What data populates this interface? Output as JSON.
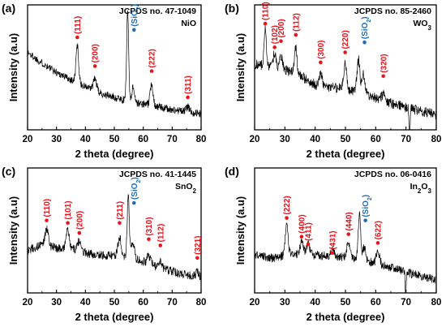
{
  "colors": {
    "trace": "#000000",
    "reference_peak": "#e8141c",
    "substrate_peak": "#1f6db5",
    "frame": "#000000"
  },
  "chart_data": [
    {
      "type": "line",
      "panel_label": "(a)",
      "reference_card": "JCPDS no. 47-1049",
      "phase": {
        "base": "NiO",
        "sub": "",
        "tail": ""
      },
      "xlabel": "2 theta (degree)",
      "ylabel": "Intensity (a.u)",
      "xlim": [
        20,
        80
      ],
      "x_ticks": [
        20,
        30,
        40,
        50,
        60,
        70,
        80
      ],
      "grid": false,
      "ylim": [
        0,
        1
      ],
      "background": [
        [
          20,
          0.62
        ],
        [
          24,
          0.55
        ],
        [
          30,
          0.46
        ],
        [
          36,
          0.39
        ],
        [
          44,
          0.3
        ],
        [
          50,
          0.26
        ],
        [
          56,
          0.22
        ],
        [
          62,
          0.2
        ],
        [
          70,
          0.16
        ],
        [
          80,
          0.13
        ]
      ],
      "noise_amplitude": 0.03,
      "trace_peaks": [
        {
          "x": 37.2,
          "height": 0.3,
          "width": 0.45
        },
        {
          "x": 43.3,
          "height": 0.1,
          "width": 0.6
        },
        {
          "x": 54.6,
          "height": 0.72,
          "width": 0.35
        },
        {
          "x": 56.5,
          "height": 0.12,
          "width": 0.5
        },
        {
          "x": 62.9,
          "height": 0.17,
          "width": 0.5
        },
        {
          "x": 75.4,
          "height": 0.04,
          "width": 0.6
        }
      ],
      "dips": [],
      "reference_peaks": [
        {
          "label": "(111)",
          "x": 37.2,
          "y": 0.74,
          "type": "phase"
        },
        {
          "label": "(200)",
          "x": 43.3,
          "y": 0.51,
          "type": "phase"
        },
        {
          "label": "(SiO2)",
          "x": 56.8,
          "y": 0.8,
          "type": "substrate"
        },
        {
          "label": "(222)",
          "x": 62.9,
          "y": 0.47,
          "type": "phase"
        },
        {
          "label": "(311)",
          "x": 75.4,
          "y": 0.26,
          "type": "phase"
        }
      ]
    },
    {
      "type": "line",
      "panel_label": "(b)",
      "reference_card": "JCPDS no. 85-2460",
      "phase": {
        "base": "WO",
        "sub": "3",
        "tail": ""
      },
      "xlabel": "2 theta (degree)",
      "ylabel": "Intensity (a.u)",
      "xlim": [
        20,
        80
      ],
      "x_ticks": [
        20,
        30,
        40,
        50,
        60,
        70,
        80
      ],
      "grid": false,
      "ylim": [
        0,
        1
      ],
      "background": [
        [
          22,
          0.52
        ],
        [
          26,
          0.5
        ],
        [
          30,
          0.48
        ],
        [
          36,
          0.42
        ],
        [
          40,
          0.36
        ],
        [
          46,
          0.34
        ],
        [
          52,
          0.32
        ],
        [
          58,
          0.27
        ],
        [
          64,
          0.22
        ],
        [
          70,
          0.18
        ],
        [
          80,
          0.12
        ]
      ],
      "noise_amplitude": 0.04,
      "trace_peaks": [
        {
          "x": 23.5,
          "height": 0.3,
          "width": 0.35
        },
        {
          "x": 26.6,
          "height": 0.12,
          "width": 0.45
        },
        {
          "x": 28.7,
          "height": 0.1,
          "width": 0.45
        },
        {
          "x": 33.6,
          "height": 0.22,
          "width": 0.4
        },
        {
          "x": 41.8,
          "height": 0.1,
          "width": 0.5
        },
        {
          "x": 49.9,
          "height": 0.22,
          "width": 0.45
        },
        {
          "x": 54.3,
          "height": 0.26,
          "width": 0.45
        },
        {
          "x": 55.9,
          "height": 0.16,
          "width": 0.5
        },
        {
          "x": 62.5,
          "height": 0.05,
          "width": 0.6
        }
      ],
      "dips": [
        {
          "x": 71.2,
          "depth": 0.25,
          "width": 0.15
        }
      ],
      "reference_peaks": [
        {
          "label": "(110)",
          "x": 23.5,
          "y": 0.85,
          "type": "phase"
        },
        {
          "label": "(102)",
          "x": 26.6,
          "y": 0.66,
          "type": "phase"
        },
        {
          "label": "(200)",
          "x": 28.7,
          "y": 0.71,
          "type": "phase"
        },
        {
          "label": "(112)",
          "x": 33.6,
          "y": 0.76,
          "type": "phase"
        },
        {
          "label": "(300)",
          "x": 41.8,
          "y": 0.54,
          "type": "phase"
        },
        {
          "label": "(220)",
          "x": 49.9,
          "y": 0.62,
          "type": "phase"
        },
        {
          "label": "(SiO2)",
          "x": 56.3,
          "y": 0.7,
          "type": "substrate"
        },
        {
          "label": "(320)",
          "x": 62.5,
          "y": 0.43,
          "type": "phase"
        }
      ]
    },
    {
      "type": "line",
      "panel_label": "(c)",
      "reference_card": "JCPDS no. 41-1445",
      "phase": {
        "base": "SnO",
        "sub": "2",
        "tail": ""
      },
      "xlabel": "2 theta (degree)",
      "ylabel": "Intensity (a.u)",
      "xlim": [
        20,
        80
      ],
      "x_ticks": [
        20,
        30,
        40,
        50,
        60,
        70,
        80
      ],
      "grid": false,
      "ylim": [
        0,
        1
      ],
      "background": [
        [
          20,
          0.34
        ],
        [
          24,
          0.38
        ],
        [
          30,
          0.36
        ],
        [
          36,
          0.35
        ],
        [
          42,
          0.31
        ],
        [
          48,
          0.3
        ],
        [
          54,
          0.29
        ],
        [
          60,
          0.25
        ],
        [
          66,
          0.2
        ],
        [
          72,
          0.16
        ],
        [
          80,
          0.12
        ]
      ],
      "noise_amplitude": 0.035,
      "trace_peaks": [
        {
          "x": 26.6,
          "height": 0.14,
          "width": 0.6
        },
        {
          "x": 33.9,
          "height": 0.15,
          "width": 0.55
        },
        {
          "x": 37.9,
          "height": 0.08,
          "width": 0.6
        },
        {
          "x": 51.8,
          "height": 0.15,
          "width": 0.55
        },
        {
          "x": 54.8,
          "height": 0.5,
          "width": 0.35
        },
        {
          "x": 56.4,
          "height": 0.14,
          "width": 0.5
        },
        {
          "x": 61.9,
          "height": 0.06,
          "width": 0.6
        },
        {
          "x": 65.9,
          "height": 0.05,
          "width": 0.6
        },
        {
          "x": 78.7,
          "height": 0.04,
          "width": 0.6
        }
      ],
      "dips": [],
      "reference_peaks": [
        {
          "label": "(110)",
          "x": 26.6,
          "y": 0.58,
          "type": "phase"
        },
        {
          "label": "(101)",
          "x": 33.9,
          "y": 0.56,
          "type": "phase"
        },
        {
          "label": "(200)",
          "x": 37.9,
          "y": 0.48,
          "type": "phase"
        },
        {
          "label": "(211)",
          "x": 51.8,
          "y": 0.56,
          "type": "phase"
        },
        {
          "label": "(SiO2)",
          "x": 56.8,
          "y": 0.72,
          "type": "substrate"
        },
        {
          "label": "(310)",
          "x": 61.9,
          "y": 0.43,
          "type": "phase"
        },
        {
          "label": "(112)",
          "x": 65.9,
          "y": 0.38,
          "type": "phase"
        },
        {
          "label": "(321)",
          "x": 78.7,
          "y": 0.28,
          "type": "phase"
        }
      ]
    },
    {
      "type": "line",
      "panel_label": "(d)",
      "reference_card": "JCPDS no. 06-0416",
      "phase": {
        "base": "In",
        "sub": "2",
        "tail": "O",
        "sub2": "3"
      },
      "xlabel": "2 theta (degree)",
      "ylabel": "Intensity (a.u)",
      "xlim": [
        20,
        80
      ],
      "x_ticks": [
        20,
        30,
        40,
        50,
        60,
        70,
        80
      ],
      "grid": false,
      "ylim": [
        0,
        1
      ],
      "background": [
        [
          20,
          0.3
        ],
        [
          26,
          0.28
        ],
        [
          30,
          0.3
        ],
        [
          36,
          0.31
        ],
        [
          42,
          0.3
        ],
        [
          48,
          0.29
        ],
        [
          54,
          0.27
        ],
        [
          60,
          0.24
        ],
        [
          66,
          0.2
        ],
        [
          72,
          0.15
        ],
        [
          80,
          0.11
        ]
      ],
      "noise_amplitude": 0.035,
      "trace_peaks": [
        {
          "x": 30.6,
          "height": 0.25,
          "width": 0.45
        },
        {
          "x": 35.5,
          "height": 0.1,
          "width": 0.55
        },
        {
          "x": 37.7,
          "height": 0.08,
          "width": 0.55
        },
        {
          "x": 45.7,
          "height": 0.04,
          "width": 0.6
        },
        {
          "x": 51.0,
          "height": 0.13,
          "width": 0.5
        },
        {
          "x": 54.6,
          "height": 0.36,
          "width": 0.4
        },
        {
          "x": 56.2,
          "height": 0.1,
          "width": 0.5
        },
        {
          "x": 60.7,
          "height": 0.11,
          "width": 0.5
        }
      ],
      "dips": [
        {
          "x": 69.9,
          "depth": 0.24,
          "width": 0.15
        }
      ],
      "reference_peaks": [
        {
          "label": "(222)",
          "x": 30.6,
          "y": 0.6,
          "type": "phase"
        },
        {
          "label": "(400)",
          "x": 35.5,
          "y": 0.45,
          "type": "phase"
        },
        {
          "label": "(411)",
          "x": 37.7,
          "y": 0.39,
          "type": "phase"
        },
        {
          "label": "(431)",
          "x": 45.7,
          "y": 0.32,
          "type": "phase"
        },
        {
          "label": "(440)",
          "x": 51.0,
          "y": 0.47,
          "type": "phase"
        },
        {
          "label": "(SiO2)",
          "x": 56.6,
          "y": 0.58,
          "type": "substrate"
        },
        {
          "label": "(622)",
          "x": 60.7,
          "y": 0.4,
          "type": "phase"
        }
      ]
    }
  ]
}
